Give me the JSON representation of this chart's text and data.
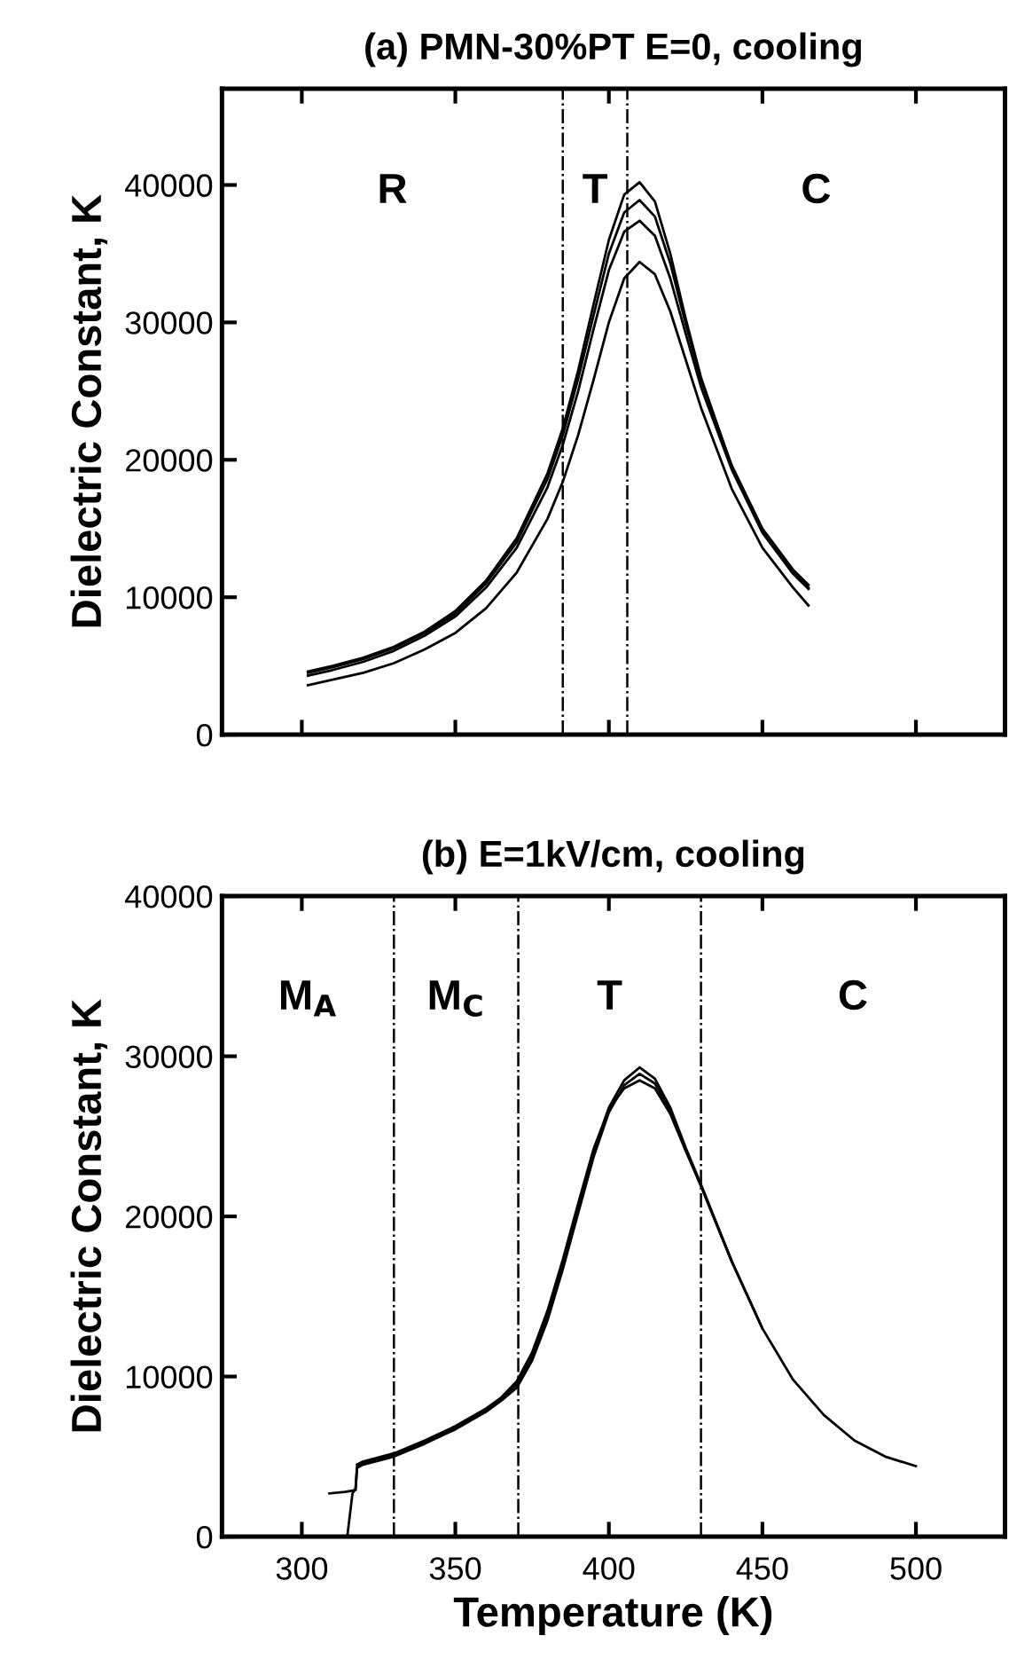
{
  "chart_data": [
    {
      "type": "line",
      "title": "(a) PMN-30%PT E=0, cooling",
      "ylabel": "Dielectric Constant, K",
      "xlim": [
        274,
        529
      ],
      "ylim": [
        0,
        47000
      ],
      "xticks": [
        300,
        350,
        400,
        450,
        500
      ],
      "yticks": [
        0,
        10000,
        20000,
        30000,
        40000
      ],
      "tick_labels": "y",
      "grid": false,
      "marker": "none",
      "line_style": "solid",
      "series": [
        {
          "color": "#000000",
          "x": [
            302,
            310,
            320,
            330,
            340,
            350,
            360,
            370,
            380,
            385,
            390,
            395,
            400,
            405,
            410,
            415,
            420,
            425,
            430,
            440,
            450,
            460,
            465
          ],
          "values": [
            4600,
            5000,
            5600,
            6400,
            7500,
            9000,
            11200,
            14300,
            19000,
            22300,
            26500,
            31300,
            36000,
            39300,
            40200,
            38800,
            35000,
            30300,
            26000,
            19500,
            14800,
            11800,
            10700
          ]
        },
        {
          "color": "#000000",
          "x": [
            302,
            310,
            320,
            330,
            340,
            350,
            360,
            370,
            380,
            385,
            390,
            395,
            400,
            405,
            410,
            415,
            420,
            425,
            430,
            440,
            450,
            460,
            465
          ],
          "values": [
            4500,
            4900,
            5500,
            6300,
            7400,
            8800,
            11000,
            14000,
            18600,
            21800,
            25900,
            30500,
            35000,
            38000,
            38900,
            37700,
            34300,
            29900,
            25800,
            19600,
            15000,
            12000,
            10900
          ]
        },
        {
          "color": "#000000",
          "x": [
            302,
            310,
            320,
            330,
            340,
            350,
            360,
            370,
            380,
            385,
            390,
            395,
            400,
            405,
            410,
            415,
            420,
            425,
            430,
            440,
            450,
            460,
            465
          ],
          "values": [
            4300,
            4700,
            5300,
            6100,
            7200,
            8600,
            10700,
            13600,
            18000,
            21100,
            25000,
            29500,
            33800,
            36600,
            37400,
            36300,
            33200,
            29200,
            25300,
            19300,
            14700,
            11700,
            10600
          ]
        },
        {
          "color": "#000000",
          "x": [
            302,
            310,
            320,
            330,
            340,
            350,
            360,
            370,
            380,
            385,
            390,
            395,
            400,
            405,
            410,
            415,
            420,
            425,
            430,
            440,
            450,
            460,
            465
          ],
          "values": [
            3600,
            4000,
            4500,
            5200,
            6200,
            7400,
            9200,
            11800,
            15700,
            18400,
            21800,
            25800,
            30000,
            33200,
            34400,
            33500,
            30800,
            27300,
            23800,
            17900,
            13600,
            10700,
            9400
          ]
        }
      ],
      "ref_lines": [
        {
          "axis": "x",
          "value": 385,
          "color": "#000000",
          "line_style": "dashdot"
        },
        {
          "axis": "x",
          "value": 406,
          "color": "#000000",
          "line_style": "dashdot"
        }
      ],
      "annotations": [
        "R",
        "T",
        "C"
      ]
    },
    {
      "type": "line",
      "title": "(b) E=1kV/cm, cooling",
      "ylabel": "Dielectric Constant, K",
      "xlabel": "Temperature (K)",
      "xlim": [
        274,
        529
      ],
      "ylim": [
        0,
        40000
      ],
      "xticks": [
        300,
        350,
        400,
        450,
        500
      ],
      "yticks": [
        0,
        10000,
        20000,
        30000,
        40000
      ],
      "grid": false,
      "marker": "none",
      "line_style": "solid",
      "series": [
        {
          "color": "#000000",
          "x": [
            309,
            314,
            317.5,
            318,
            320,
            330,
            340,
            350,
            360,
            365,
            370,
            375,
            380,
            385,
            390,
            395,
            400,
            405,
            410,
            415,
            420,
            425,
            430,
            440,
            450,
            460,
            470,
            480,
            490,
            500
          ],
          "values": [
            2700,
            2800,
            2900,
            4400,
            4600,
            5100,
            5900,
            6800,
            7900,
            8600,
            9500,
            11200,
            13800,
            17000,
            20500,
            24000,
            26800,
            28500,
            29300,
            28600,
            26800,
            24300,
            22000,
            17200,
            13000,
            9800,
            7600,
            6000,
            5000,
            4400
          ]
        },
        {
          "color": "#000000",
          "x": [
            314.8,
            316.5,
            317.5,
            318,
            320,
            330,
            340,
            350,
            360,
            365,
            370,
            375,
            380,
            385,
            390,
            395,
            400,
            405,
            410,
            415,
            420,
            425,
            430,
            440,
            450
          ],
          "values": [
            0,
            2700,
            3000,
            4300,
            4500,
            5000,
            5800,
            6700,
            7800,
            8500,
            9300,
            11000,
            13500,
            16700,
            20200,
            23700,
            26500,
            28200,
            28900,
            28300,
            26600,
            24200,
            21900,
            17200,
            13000
          ]
        },
        {
          "color": "#000000",
          "x": [
            318,
            320,
            330,
            340,
            350,
            360,
            365,
            370,
            375,
            380,
            385,
            390,
            395,
            400,
            405,
            410,
            415,
            420,
            425,
            430,
            440
          ],
          "values": [
            4500,
            4700,
            5200,
            6000,
            6900,
            8000,
            8700,
            9700,
            11500,
            14100,
            17300,
            20800,
            24200,
            26700,
            28000,
            28500,
            28000,
            26400,
            24100,
            21900,
            17200
          ]
        }
      ],
      "ref_lines": [
        {
          "axis": "x",
          "value": 330,
          "color": "#000000",
          "line_style": "dashdot"
        },
        {
          "axis": "x",
          "value": 370.5,
          "color": "#000000",
          "line_style": "dashdot"
        },
        {
          "axis": "x",
          "value": 430,
          "color": "#000000",
          "line_style": "dashdot"
        }
      ],
      "annotations": [
        "M$_{A}$",
        "M$_{C}$",
        "T",
        "C"
      ]
    }
  ]
}
